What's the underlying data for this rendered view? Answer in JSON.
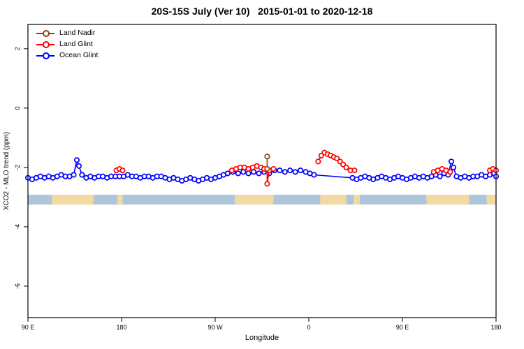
{
  "title": "20S-15S July (Ver 10)   2015-01-01 to 2020-12-18",
  "chart_data": {
    "type": "line",
    "title": "20S-15S July (Ver 10)   2015-01-01 to 2020-12-18",
    "xlabel": "Longitude",
    "ylabel": "XCO2 - MLO trend (ppm)",
    "x_units": "axis position in degrees east of the left edge (left edge = 90 E, axis wraps 450 deg)",
    "xlim": [
      0,
      450
    ],
    "ylim": [
      -7.06,
      2.82
    ],
    "grid": false,
    "legend_position": "top-left inside",
    "x_ticks": [
      {
        "pos": 0,
        "label": "90 E"
      },
      {
        "pos": 90,
        "label": "180"
      },
      {
        "pos": 180,
        "label": "90 W"
      },
      {
        "pos": 270,
        "label": "0"
      },
      {
        "pos": 360,
        "label": "90 E"
      },
      {
        "pos": 450,
        "label": "180"
      }
    ],
    "y_ticks": [
      {
        "pos": 2,
        "label": "2"
      },
      {
        "pos": 0,
        "label": "0"
      },
      {
        "pos": -2,
        "label": "-2"
      },
      {
        "pos": -4,
        "label": "-4"
      },
      {
        "pos": -6,
        "label": "-6"
      }
    ],
    "legend": [
      {
        "label": "Land Nadir",
        "color": "#8B4513"
      },
      {
        "label": "Land Glint",
        "color": "#FF0000"
      },
      {
        "label": "Ocean Glint",
        "color": "#0000FF"
      }
    ],
    "map_strip": {
      "y_top": -2.92,
      "y_bottom": -3.25,
      "ocean_color": "#AEC6DB",
      "land_color": "#F3D9A2",
      "land_segments": [
        [
          23,
          63
        ],
        [
          86,
          91
        ],
        [
          199,
          236
        ],
        [
          281,
          306
        ],
        [
          313,
          319
        ],
        [
          383,
          424
        ],
        [
          441,
          450
        ]
      ]
    },
    "series": [
      {
        "name": "Ocean Glint",
        "color": "#0000FF",
        "segments": [
          [
            [
              0,
              -2.35
            ],
            [
              4,
              -2.4
            ],
            [
              8,
              -2.35
            ],
            [
              12,
              -2.3
            ],
            [
              16,
              -2.35
            ],
            [
              20,
              -2.3
            ],
            [
              24,
              -2.35
            ],
            [
              28,
              -2.3
            ],
            [
              32,
              -2.25
            ],
            [
              36,
              -2.3
            ],
            [
              40,
              -2.3
            ],
            [
              44,
              -2.25
            ],
            [
              47,
              -1.75
            ],
            [
              49,
              -1.95
            ],
            [
              52,
              -2.25
            ],
            [
              56,
              -2.35
            ],
            [
              60,
              -2.3
            ],
            [
              64,
              -2.35
            ],
            [
              68,
              -2.3
            ],
            [
              72,
              -2.3
            ],
            [
              76,
              -2.35
            ],
            [
              80,
              -2.3
            ],
            [
              84,
              -2.3
            ],
            [
              88,
              -2.3
            ],
            [
              92,
              -2.3
            ],
            [
              96,
              -2.25
            ],
            [
              100,
              -2.3
            ],
            [
              104,
              -2.3
            ],
            [
              108,
              -2.35
            ],
            [
              112,
              -2.3
            ],
            [
              116,
              -2.3
            ],
            [
              120,
              -2.35
            ],
            [
              124,
              -2.3
            ],
            [
              128,
              -2.3
            ],
            [
              132,
              -2.35
            ],
            [
              136,
              -2.4
            ],
            [
              140,
              -2.35
            ],
            [
              144,
              -2.4
            ],
            [
              148,
              -2.45
            ],
            [
              152,
              -2.4
            ],
            [
              156,
              -2.35
            ],
            [
              160,
              -2.4
            ],
            [
              164,
              -2.45
            ],
            [
              168,
              -2.4
            ],
            [
              172,
              -2.35
            ],
            [
              176,
              -2.4
            ],
            [
              180,
              -2.35
            ],
            [
              184,
              -2.3
            ],
            [
              188,
              -2.25
            ],
            [
              192,
              -2.2
            ],
            [
              197,
              -2.15
            ],
            [
              202,
              -2.2
            ],
            [
              207,
              -2.15
            ],
            [
              212,
              -2.2
            ],
            [
              217,
              -2.15
            ],
            [
              222,
              -2.2
            ],
            [
              227,
              -2.15
            ],
            [
              232,
              -2.2
            ],
            [
              237,
              -2.1
            ],
            [
              242,
              -2.1
            ],
            [
              247,
              -2.15
            ],
            [
              252,
              -2.1
            ],
            [
              257,
              -2.15
            ],
            [
              262,
              -2.1
            ],
            [
              267,
              -2.15
            ],
            [
              271,
              -2.2
            ],
            [
              275,
              -2.25
            ],
            [
              312,
              -2.35
            ],
            [
              316,
              -2.4
            ],
            [
              320,
              -2.35
            ],
            [
              324,
              -2.3
            ],
            [
              328,
              -2.35
            ],
            [
              332,
              -2.4
            ],
            [
              336,
              -2.35
            ],
            [
              340,
              -2.3
            ],
            [
              344,
              -2.35
            ],
            [
              348,
              -2.4
            ],
            [
              352,
              -2.35
            ],
            [
              356,
              -2.3
            ],
            [
              360,
              -2.35
            ],
            [
              364,
              -2.4
            ],
            [
              368,
              -2.35
            ],
            [
              372,
              -2.3
            ],
            [
              376,
              -2.35
            ],
            [
              380,
              -2.3
            ],
            [
              384,
              -2.35
            ],
            [
              388,
              -2.3
            ],
            [
              392,
              -2.25
            ],
            [
              396,
              -2.3
            ],
            [
              400,
              -2.2
            ],
            [
              404,
              -2.25
            ],
            [
              407,
              -1.8
            ],
            [
              409,
              -2.0
            ],
            [
              412,
              -2.3
            ],
            [
              416,
              -2.35
            ],
            [
              420,
              -2.3
            ],
            [
              424,
              -2.35
            ],
            [
              428,
              -2.3
            ],
            [
              432,
              -2.3
            ],
            [
              436,
              -2.25
            ],
            [
              440,
              -2.3
            ],
            [
              444,
              -2.25
            ],
            [
              448,
              -2.2
            ],
            [
              450,
              -2.3
            ]
          ]
        ]
      },
      {
        "name": "Land Glint",
        "color": "#FF0000",
        "segments": [
          [
            [
              85,
              -2.1
            ],
            [
              88,
              -2.05
            ],
            [
              91,
              -2.1
            ]
          ],
          [
            [
              196,
              -2.1
            ],
            [
              200,
              -2.05
            ],
            [
              204,
              -2.0
            ],
            [
              208,
              -2.0
            ],
            [
              212,
              -2.05
            ],
            [
              216,
              -2.0
            ],
            [
              220,
              -1.95
            ],
            [
              224,
              -2.0
            ],
            [
              227,
              -2.05
            ],
            [
              230,
              -2.1
            ],
            [
              230,
              -2.55
            ],
            [
              232,
              -2.1
            ],
            [
              236,
              -2.05
            ]
          ],
          [
            [
              279,
              -1.8
            ],
            [
              282,
              -1.6
            ],
            [
              285,
              -1.5
            ],
            [
              288,
              -1.55
            ],
            [
              291,
              -1.6
            ],
            [
              294,
              -1.65
            ],
            [
              297,
              -1.7
            ],
            [
              300,
              -1.8
            ],
            [
              303,
              -1.9
            ],
            [
              306,
              -2.0
            ],
            [
              310,
              -2.1
            ],
            [
              314,
              -2.1
            ]
          ],
          [
            [
              390,
              -2.15
            ],
            [
              394,
              -2.1
            ],
            [
              398,
              -2.05
            ],
            [
              402,
              -2.1
            ],
            [
              406,
              -2.15
            ]
          ],
          [
            [
              444,
              -2.1
            ],
            [
              447,
              -2.05
            ],
            [
              450,
              -2.1
            ]
          ]
        ]
      },
      {
        "name": "Land Nadir",
        "color": "#8B4513",
        "segments": [
          [
            [
              230,
              -1.63
            ],
            [
              230,
              -2.05
            ]
          ]
        ]
      }
    ]
  }
}
